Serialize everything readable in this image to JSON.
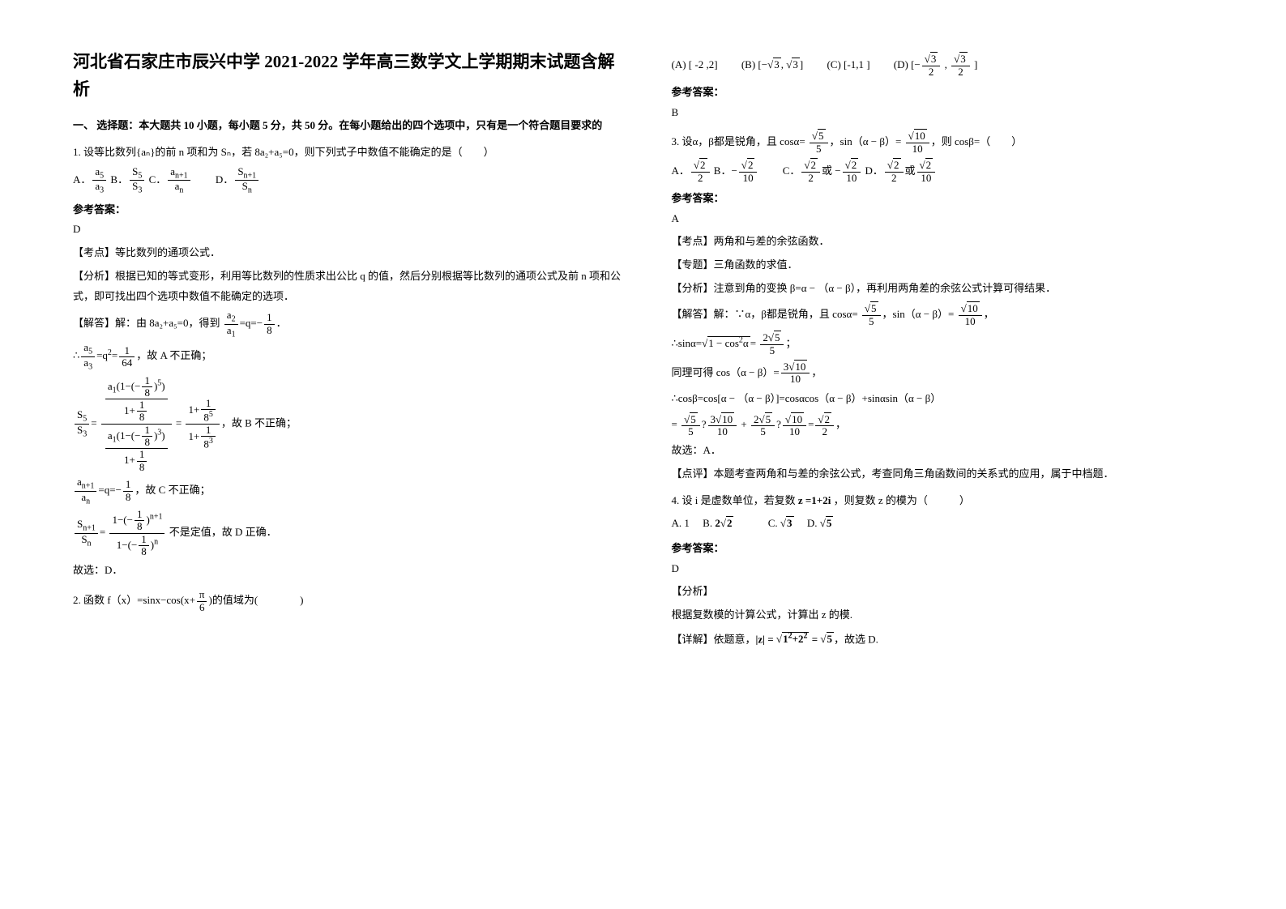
{
  "title": "河北省石家庄市辰兴中学 2021-2022 学年高三数学文上学期期末试题含解析",
  "section1_head": "一、 选择题：本大题共 10 小题，每小题 5 分，共 50 分。在每小题给出的四个选项中，只有是一个符合题目要求的",
  "q1": {
    "stem": "1. 设等比数列{aₙ}的前 n 项和为 Sₙ，若 8a₂+a₅=0，则下列式子中数值不能确定的是（　　）",
    "ans_label": "参考答案：",
    "ans": "D",
    "kp": "【考点】等比数列的通项公式．",
    "fx": "【分析】根据已知的等式变形，利用等比数列的性质求出公比 q 的值，然后分别根据等比数列的通项公式及前 n 项和公式，即可找出四个选项中数值不能确定的选项．",
    "jd_prefix": "【解答】解：由 8a₂+a₅=0，得到",
    "jd_eq1_rhs": "．",
    "line_a": "，故 A 不正确；",
    "line_b": "，故 B 不正确；",
    "line_c": "，故 C 不正确；",
    "line_d_tail": "不是定值，故 D 正确．",
    "so": "故选：D．"
  },
  "q2": {
    "stem_pre": "2. 函数 f（x）=sinx−cos(x+",
    "stem_post": ")的值域为(　　　　)",
    "optA": "(A) [ -2 ,2]",
    "optB_pre": "(B) [−",
    "optB_mid": ", ",
    "optB_post": "]",
    "optC": "(C) [-1,1 ]",
    "optD_pre": "(D) [−",
    "optD_mid": " , ",
    "optD_post": " ]",
    "ans_label": "参考答案：",
    "ans": "B"
  },
  "q3": {
    "stem_pre": "3. 设α，β都是锐角，且 cosα= ",
    "stem_mid1": "，sin（α − β）= ",
    "stem_post": "，则 cosβ=（　　）",
    "ans_label": "参考答案：",
    "ans": "A",
    "kp": "【考点】两角和与差的余弦函数．",
    "zt": "【专题】三角函数的求值．",
    "fx": "【分析】注意到角的变换 β=α − （α − β），再利用两角差的余弦公式计算可得结果．",
    "jd_pre": "【解答】解：∵α，β都是锐角，且 cosα= ",
    "jd_mid": "，sin（α − β）= ",
    "jd_post": "，",
    "sin_pre": "∴sinα=",
    "sin_mid": "= ",
    "sin_post": "；",
    "tongli_pre": "同理可得",
    "cos_expand": "∴cosβ=cos[α − （α − β）]=cosαcos（α − β）+sinαsin（α − β）",
    "calc_eq": "= ",
    "calc_post": "，",
    "so": "故选：A．",
    "dp": "【点评】本题考查两角和与差的余弦公式，考查同角三角函数间的关系式的应用，属于中档题．"
  },
  "q4": {
    "stem_pre": "4. 设 i 是虚数单位，若复数",
    "stem_bold": " z =1+2i ",
    "stem_post": "，则复数 z 的模为（　　　）",
    "optA": "A. 1",
    "optB_pre": "B. ",
    "optC_pre": "C. ",
    "optD_pre": "D. ",
    "ans_label": "参考答案：",
    "ans": "D",
    "fx_head": "【分析】",
    "fx": "根据复数模的计算公式，计算出 z 的模.",
    "xj_pre": "【详解】依题意，",
    "xj_post": "，故选 D."
  }
}
